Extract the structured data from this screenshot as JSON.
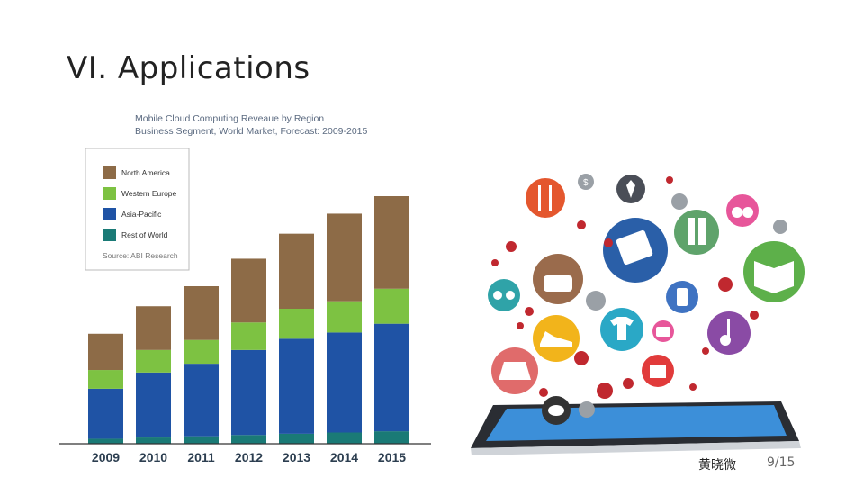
{
  "slide": {
    "title": "VI. Applications",
    "author": "黄晓微",
    "page": "9/15"
  },
  "colors": {
    "north_america": "#8d6b47",
    "western_europe": "#7dc242",
    "asia_pacific": "#1f53a5",
    "rest_of_world": "#1a7a76"
  },
  "chart_data": {
    "type": "bar",
    "stacked": true,
    "title": "Mobile Cloud Computing Reveaue by Region",
    "subtitle": "Business Segment, World Market, Forecast: 2009-2015",
    "source": "Source: ABI Research",
    "legend_position": "top-left",
    "grid": false,
    "categories": [
      "2009",
      "2010",
      "2011",
      "2012",
      "2013",
      "2014",
      "2015"
    ],
    "series": [
      {
        "name": "Rest of World",
        "color": "#1a7a76",
        "values": [
          4,
          5,
          6,
          7,
          8,
          9,
          10
        ]
      },
      {
        "name": "Asia-Pacific",
        "color": "#1f53a5",
        "values": [
          40,
          52,
          58,
          68,
          76,
          80,
          86
        ]
      },
      {
        "name": "Western Europe",
        "color": "#7dc242",
        "values": [
          15,
          18,
          19,
          22,
          24,
          25,
          28
        ]
      },
      {
        "name": "North America",
        "color": "#8d6b47",
        "values": [
          29,
          35,
          43,
          51,
          60,
          70,
          74
        ]
      }
    ],
    "legend_order": [
      "North America",
      "Western Europe",
      "Asia-Pacific",
      "Rest of World"
    ],
    "ylim": [
      0,
      200
    ]
  },
  "illustration": {
    "label": "mobile shopping apps illustration",
    "dollar_sign": "$"
  }
}
